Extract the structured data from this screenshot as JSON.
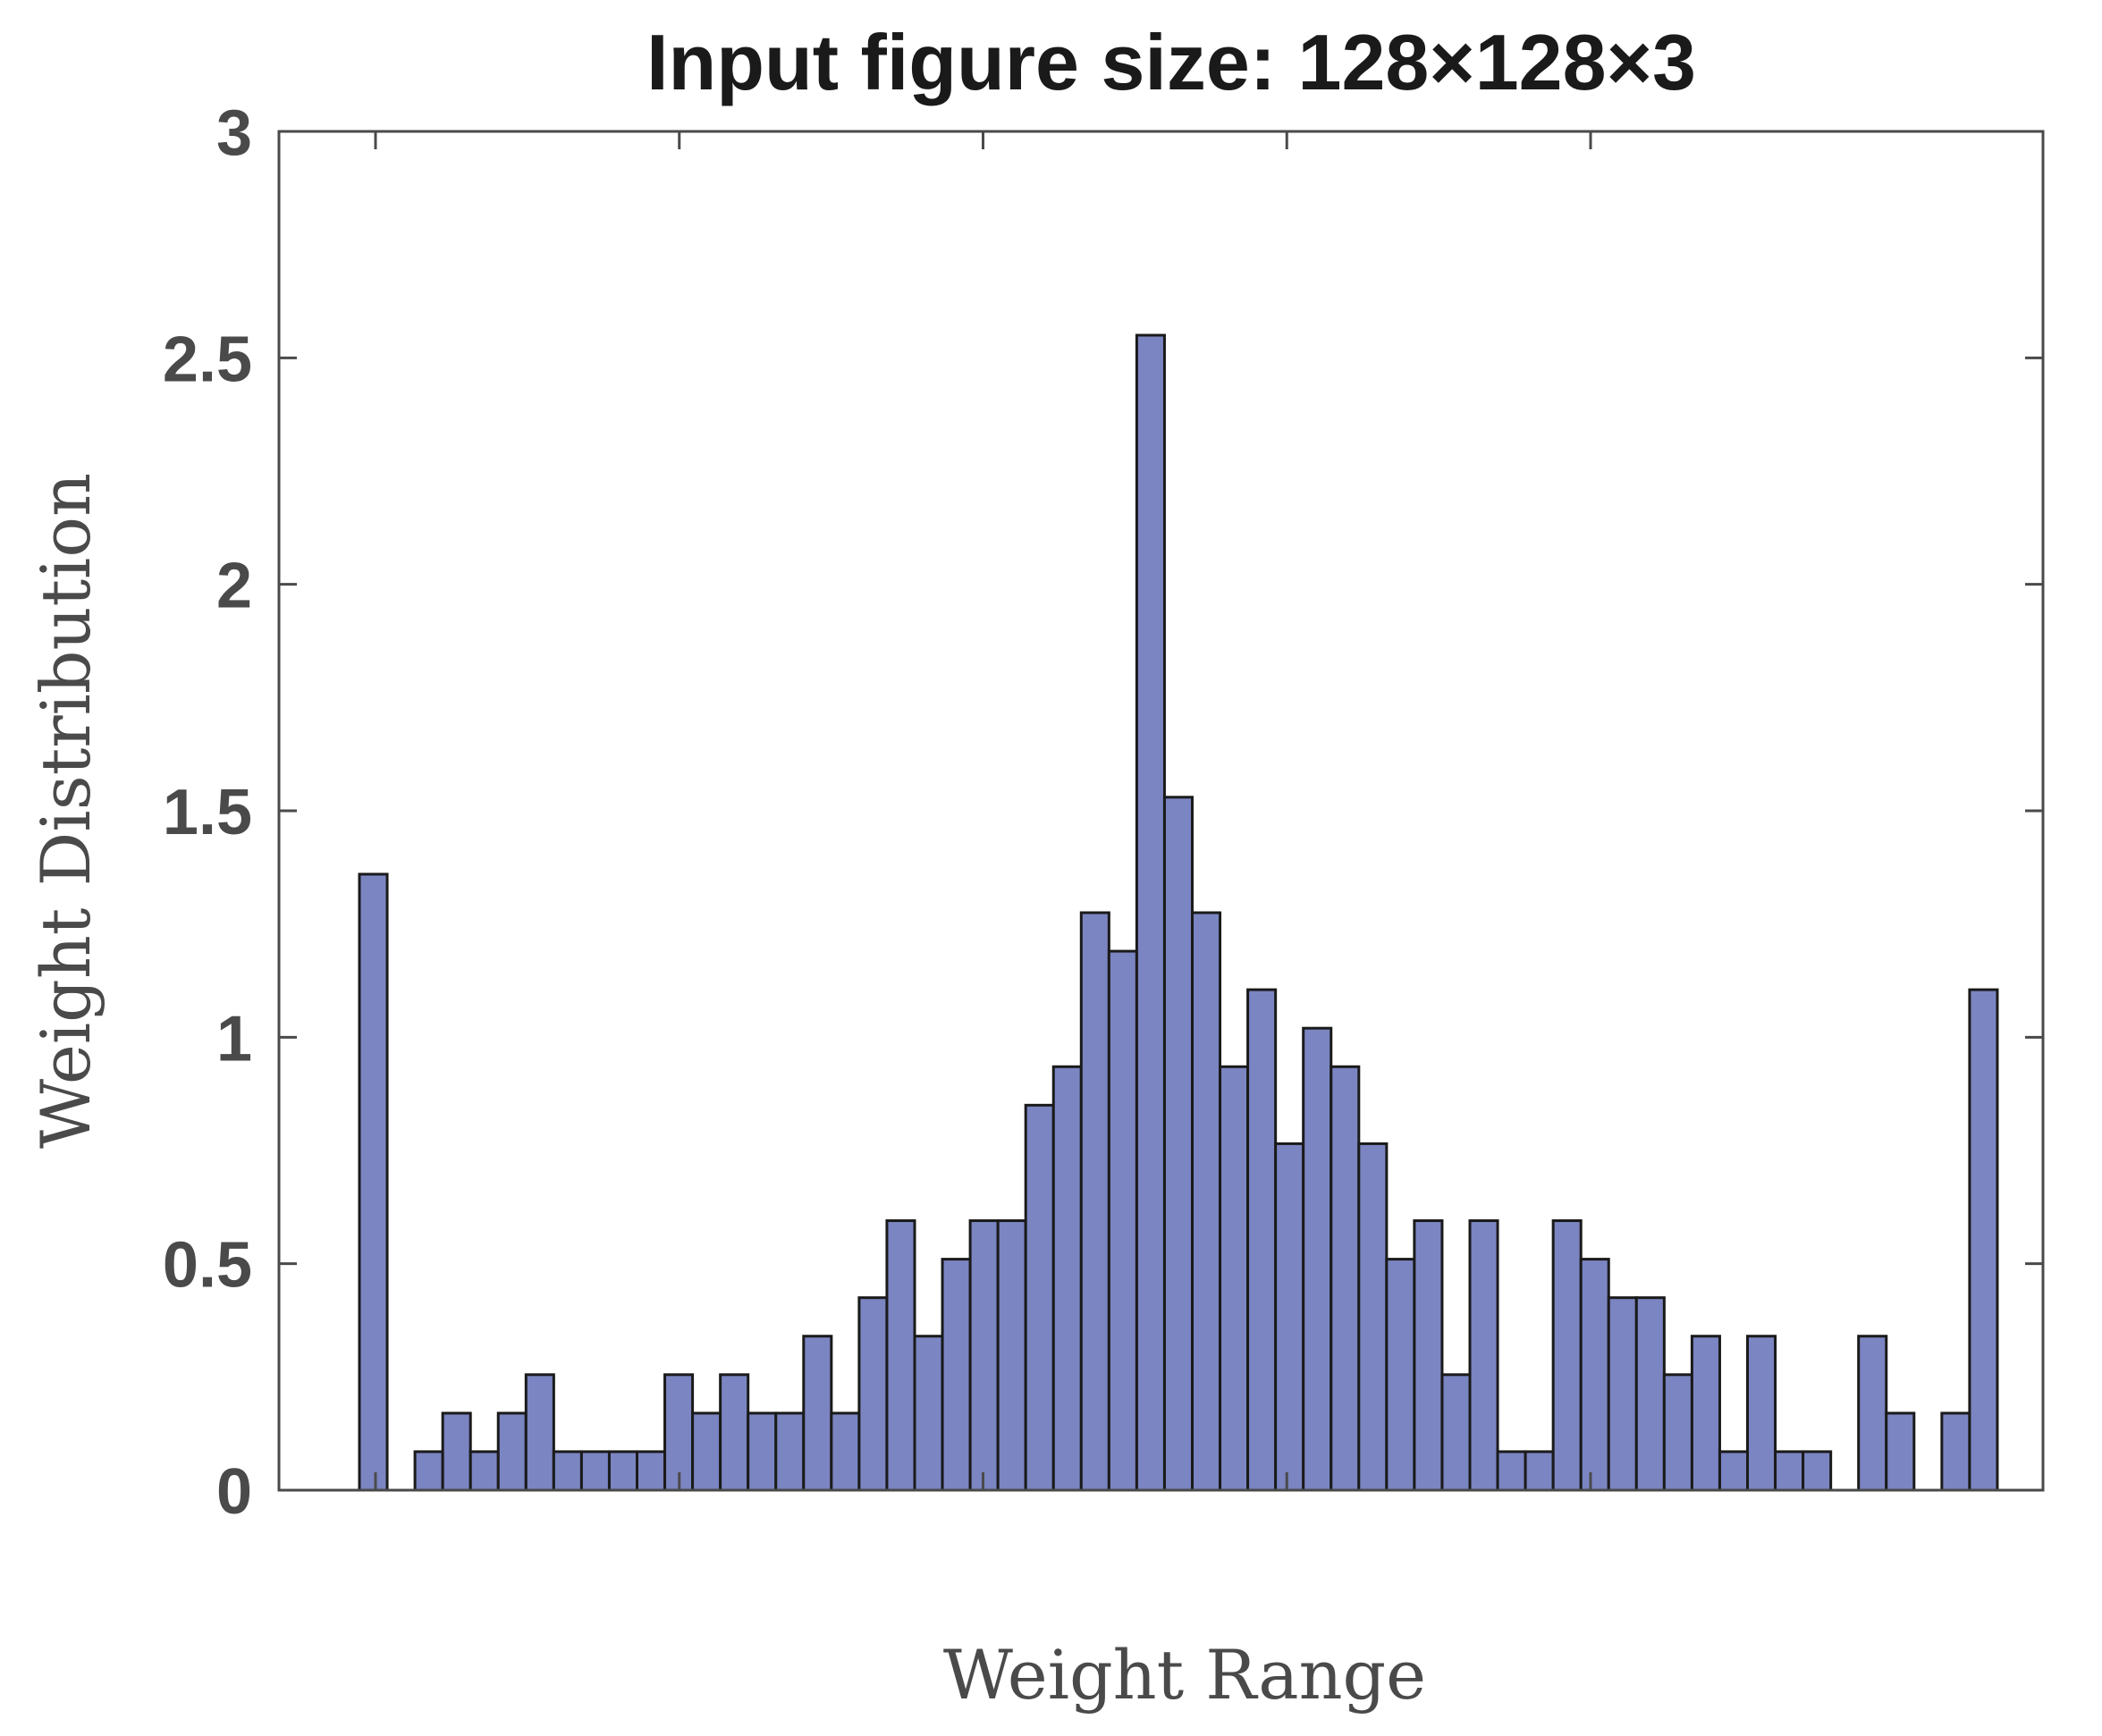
{
  "chart_data": {
    "type": "bar",
    "title": "Input figure size: 128×128×3",
    "xlabel": "Weight Range",
    "ylabel": "Weight Distribution",
    "ylim": [
      0,
      3
    ],
    "yticks": [
      0,
      0.5,
      1,
      1.5,
      2,
      2.5,
      3
    ],
    "ytick_labels": [
      "0",
      "0.5",
      "1",
      "1.5",
      "2",
      "2.5",
      "3"
    ],
    "xtick_count": 5,
    "xtick_labels": [],
    "grid": false,
    "bar_color": "#7b85c2",
    "edge_color": "#1a1a1a",
    "values": [
      1.36,
      0,
      0.085,
      0.17,
      0.085,
      0.17,
      0.255,
      0.085,
      0.085,
      0.085,
      0.085,
      0.255,
      0.17,
      0.255,
      0.17,
      0.17,
      0.34,
      0.17,
      0.425,
      0.595,
      0.34,
      0.51,
      0.595,
      0.595,
      0.85,
      0.935,
      1.275,
      1.19,
      2.55,
      1.53,
      1.275,
      0.935,
      1.105,
      0.765,
      1.02,
      0.935,
      0.765,
      0.51,
      0.595,
      0.255,
      0.595,
      0.085,
      0.085,
      0.595,
      0.51,
      0.425,
      0.425,
      0.255,
      0.34,
      0.085,
      0.34,
      0.085,
      0.085,
      0,
      0.34,
      0.17,
      0,
      0.17,
      1.105
    ]
  }
}
